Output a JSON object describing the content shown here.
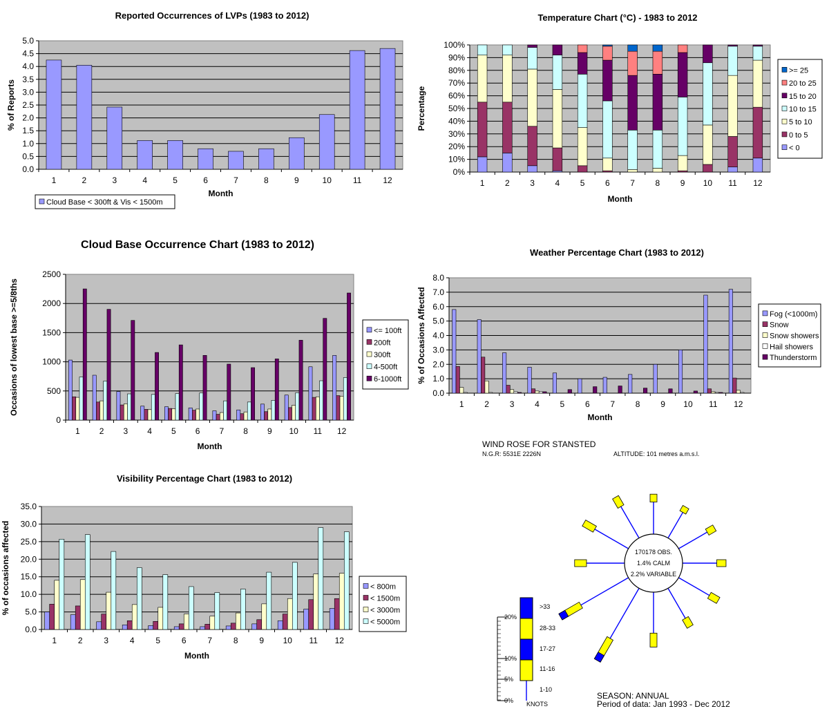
{
  "chart_data": [
    {
      "id": "lvp",
      "type": "bar",
      "title": "Reported Occurrences of LVPs (1983 to 2012)",
      "xlabel": "Month",
      "ylabel": "% of Reports",
      "categories": [
        "1",
        "2",
        "3",
        "4",
        "5",
        "6",
        "7",
        "8",
        "9",
        "10",
        "11",
        "12"
      ],
      "ylim": [
        0,
        5.0
      ],
      "yticks": [
        "0.0",
        "0.5",
        "1.0",
        "1.5",
        "2.0",
        "2.5",
        "3.0",
        "3.5",
        "4.0",
        "4.5",
        "5.0"
      ],
      "grid": true,
      "legend": "bottom-left",
      "series": [
        {
          "name": "Cloud Base < 300ft & Vis < 1500m",
          "color": "#9999ff",
          "values": [
            4.25,
            4.05,
            2.42,
            1.12,
            1.12,
            0.8,
            0.7,
            0.8,
            1.23,
            2.13,
            4.62,
            4.7
          ]
        }
      ]
    },
    {
      "id": "temperature",
      "type": "bar",
      "stacked": true,
      "title": "Temperature Chart (°C) - 1983 to 2012",
      "xlabel": "Month",
      "ylabel": "Percentage",
      "categories": [
        "1",
        "2",
        "3",
        "4",
        "5",
        "6",
        "7",
        "8",
        "9",
        "10",
        "11",
        "12"
      ],
      "ylim": [
        0,
        100
      ],
      "yticks": [
        "0%",
        "10%",
        "20%",
        "30%",
        "40%",
        "50%",
        "60%",
        "70%",
        "80%",
        "90%",
        "100%"
      ],
      "grid": true,
      "legend": "right",
      "legend_order": [
        ">= 25",
        "20 to 25",
        "15 to 20",
        "10 to 15",
        "5 to 10",
        "0 to 5",
        "< 0"
      ],
      "series": [
        {
          "name": "< 0",
          "color": "#9999ff",
          "values": [
            12,
            15,
            5,
            1,
            0,
            0,
            0,
            0,
            0,
            0,
            4,
            11
          ]
        },
        {
          "name": "0 to 5",
          "color": "#993366",
          "values": [
            43,
            40,
            31,
            18,
            5,
            1,
            0,
            0,
            1,
            6,
            24,
            40
          ]
        },
        {
          "name": "5 to 10",
          "color": "#ffffcc",
          "values": [
            37,
            37,
            45,
            46,
            30,
            10,
            2,
            3,
            12,
            31,
            48,
            37
          ]
        },
        {
          "name": "10 to 15",
          "color": "#ccffff",
          "values": [
            8,
            8,
            17,
            27,
            42,
            45,
            31,
            30,
            46,
            49,
            23,
            11
          ]
        },
        {
          "name": "15 to 20",
          "color": "#660066",
          "values": [
            0,
            0,
            2,
            8,
            17,
            32,
            43,
            44,
            35,
            14,
            1,
            1
          ]
        },
        {
          "name": "20 to 25",
          "color": "#ff8080",
          "values": [
            0,
            0,
            0,
            0,
            6,
            11,
            19,
            18,
            6,
            0,
            0,
            0
          ]
        },
        {
          "name": ">= 25",
          "color": "#0066cc",
          "values": [
            0,
            0,
            0,
            0,
            0,
            1,
            5,
            5,
            0,
            0,
            0,
            0
          ]
        }
      ]
    },
    {
      "id": "cloudbase",
      "type": "bar",
      "title": "Cloud Base Occurrence Chart (1983 to 2012)",
      "xlabel": "Month",
      "ylabel": "Occasions of lowest base >=5/8ths",
      "categories": [
        "1",
        "2",
        "3",
        "4",
        "5",
        "6",
        "7",
        "8",
        "9",
        "10",
        "11",
        "12"
      ],
      "ylim": [
        0,
        2500
      ],
      "yticks": [
        "0",
        "500",
        "1000",
        "1500",
        "2000",
        "2500"
      ],
      "grid": true,
      "legend": "right",
      "series": [
        {
          "name": "<= 100ft",
          "color": "#9999ff",
          "values": [
            1030,
            770,
            490,
            240,
            230,
            210,
            160,
            175,
            275,
            430,
            915,
            1110
          ]
        },
        {
          "name": "200ft",
          "color": "#993366",
          "values": [
            400,
            310,
            260,
            185,
            200,
            170,
            100,
            110,
            145,
            215,
            390,
            420
          ]
        },
        {
          "name": "300ft",
          "color": "#ffffcc",
          "values": [
            390,
            330,
            280,
            180,
            195,
            190,
            130,
            140,
            190,
            255,
            400,
            410
          ]
        },
        {
          "name": "4-500ft",
          "color": "#ccffff",
          "values": [
            740,
            670,
            450,
            440,
            455,
            465,
            330,
            310,
            340,
            470,
            675,
            730
          ]
        },
        {
          "name": "6-1000ft",
          "color": "#660066",
          "values": [
            2250,
            1900,
            1710,
            1160,
            1290,
            1110,
            960,
            900,
            1050,
            1370,
            1745,
            2180
          ]
        }
      ]
    },
    {
      "id": "weather",
      "type": "bar",
      "title": "Weather Percentage Chart (1983 to 2012)",
      "xlabel": "Month",
      "ylabel": "% of Occasions Affected",
      "categories": [
        "1",
        "2",
        "3",
        "4",
        "5",
        "6",
        "7",
        "8",
        "9",
        "10",
        "11",
        "12"
      ],
      "ylim": [
        0,
        8.0
      ],
      "yticks": [
        "0.0",
        "1.0",
        "2.0",
        "3.0",
        "4.0",
        "5.0",
        "6.0",
        "7.0",
        "8.0"
      ],
      "grid": true,
      "legend": "right",
      "series": [
        {
          "name": "Fog (<1000m)",
          "color": "#9999ff",
          "values": [
            5.8,
            5.1,
            2.8,
            1.8,
            1.4,
            1.0,
            1.1,
            1.3,
            2.0,
            3.0,
            6.8,
            7.2
          ]
        },
        {
          "name": "Snow",
          "color": "#993366",
          "values": [
            1.85,
            2.5,
            0.55,
            0.3,
            0.0,
            0.0,
            0.0,
            0.0,
            0.0,
            0.0,
            0.3,
            1.05
          ]
        },
        {
          "name": "Snow showers",
          "color": "#ffffcc",
          "values": [
            0.4,
            0.85,
            0.25,
            0.15,
            0.0,
            0.0,
            0.0,
            0.0,
            0.0,
            0.0,
            0.1,
            0.2
          ]
        },
        {
          "name": "Hail showers",
          "color": "#ffffff",
          "values": [
            0.05,
            0.05,
            0.1,
            0.1,
            0.0,
            0.0,
            0.0,
            0.0,
            0.0,
            0.0,
            0.05,
            0.05
          ]
        },
        {
          "name": "Thunderstorm",
          "color": "#660066",
          "values": [
            0.0,
            0.0,
            0.05,
            0.1,
            0.25,
            0.45,
            0.5,
            0.35,
            0.3,
            0.15,
            0.05,
            0.0
          ]
        }
      ]
    },
    {
      "id": "visibility",
      "type": "bar",
      "title": "Visibility Percentage Chart (1983 to 2012)",
      "xlabel": "Month",
      "ylabel": "% of occasions affected",
      "categories": [
        "1",
        "2",
        "3",
        "4",
        "5",
        "6",
        "7",
        "8",
        "9",
        "10",
        "11",
        "12"
      ],
      "ylim": [
        0,
        35.0
      ],
      "yticks": [
        "0.0",
        "5.0",
        "10.0",
        "15.0",
        "20.0",
        "25.0",
        "30.0",
        "35.0"
      ],
      "grid": true,
      "legend": "right",
      "series": [
        {
          "name": "< 800m",
          "color": "#9999ff",
          "values": [
            5.0,
            4.2,
            2.2,
            1.3,
            1.1,
            0.8,
            0.8,
            1.0,
            1.6,
            2.5,
            5.8,
            6.0
          ]
        },
        {
          "name": "< 1500m",
          "color": "#993366",
          "values": [
            7.2,
            6.7,
            4.4,
            2.5,
            2.3,
            1.6,
            1.5,
            1.8,
            2.8,
            4.4,
            8.5,
            8.8
          ]
        },
        {
          "name": "< 3000m",
          "color": "#ffffcc",
          "values": [
            14.0,
            14.2,
            10.6,
            7.1,
            6.3,
            4.4,
            3.8,
            4.7,
            7.3,
            8.8,
            15.8,
            16.0
          ]
        },
        {
          "name": "< 5000m",
          "color": "#ccffff",
          "values": [
            25.7,
            27.0,
            22.2,
            17.6,
            15.6,
            12.2,
            10.5,
            11.5,
            16.3,
            19.1,
            29.0,
            27.8
          ]
        }
      ]
    }
  ],
  "windrose": {
    "title": "WIND ROSE FOR STANSTED",
    "ngr": "N.G.R: 5531E 2226N",
    "altitude": "ALTITUDE:  101 metres a.m.s.l.",
    "obs": "170178 OBS.",
    "calm": "1.4% CALM",
    "variable": "2.2% VARIABLE",
    "season": "SEASON: ANNUAL",
    "period": "Period of data: Jan 1993 - Dec 2012",
    "scale_labels": [
      "20%",
      "10%",
      "5%",
      "0%"
    ],
    "speed_labels": [
      ">33",
      "28-33",
      "17-27",
      "11-16",
      "1-10"
    ],
    "units": "KNOTS",
    "colors": {
      "line": "#0000ff",
      "bar_a": "#ffff00",
      "bar_b": "#0000ff"
    },
    "directions_deg": [
      0,
      30,
      60,
      90,
      120,
      150,
      180,
      210,
      240,
      270,
      300,
      330
    ],
    "direction_percent": [
      2.7,
      2.1,
      2.9,
      3.2,
      3.5,
      3.3,
      4.8,
      8.8,
      8.1,
      4.1,
      4.3,
      3.7
    ]
  }
}
